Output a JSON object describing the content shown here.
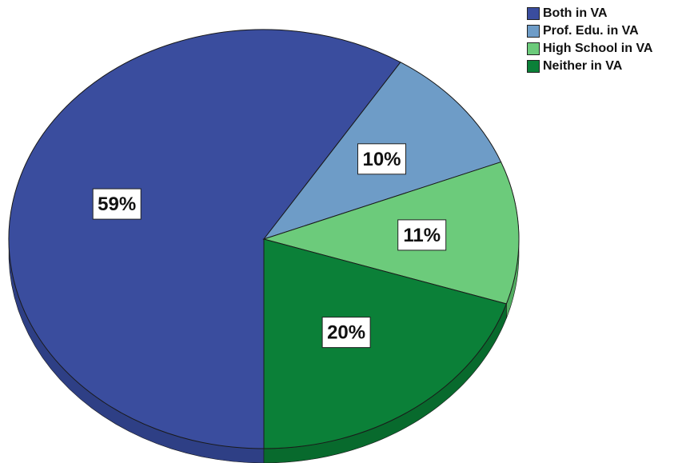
{
  "chart_data": {
    "type": "pie",
    "title": "",
    "categories": [
      "Both in VA",
      "Prof. Edu. in VA",
      "High School in VA",
      "Neither in VA"
    ],
    "values": [
      59,
      10,
      11,
      20
    ],
    "labels": [
      "59%",
      "10%",
      "11%",
      "20%"
    ],
    "colors": [
      "#3A4D9E",
      "#6E9CC7",
      "#6CCB7B",
      "#0B8038"
    ],
    "side_colors": [
      "#2E3F85",
      "#5A85AE",
      "#52AE61",
      "#086A2D"
    ],
    "legend_position": "top-right",
    "style": "3d"
  }
}
